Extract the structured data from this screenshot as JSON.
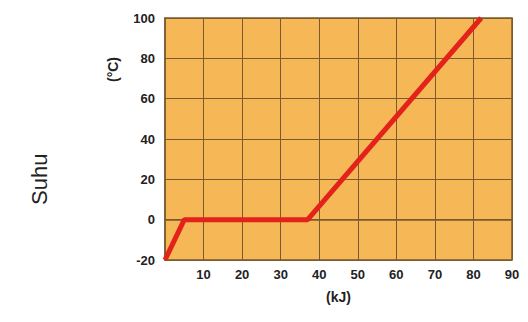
{
  "chart_data": {
    "type": "line",
    "ylabel": "Suhu",
    "yunit": "(°C)",
    "xlabel": "(kJ)",
    "x": [
      0,
      5,
      37,
      82
    ],
    "values": [
      -20,
      0,
      0,
      100
    ],
    "color": "#e3221b",
    "xlim": [
      0,
      90
    ],
    "xticks": [
      10,
      20,
      30,
      40,
      50,
      60,
      70,
      80,
      90
    ],
    "ylim": [
      -20,
      100
    ],
    "yticks": [
      -20,
      0,
      20,
      40,
      60,
      80,
      100
    ],
    "grid": true
  }
}
